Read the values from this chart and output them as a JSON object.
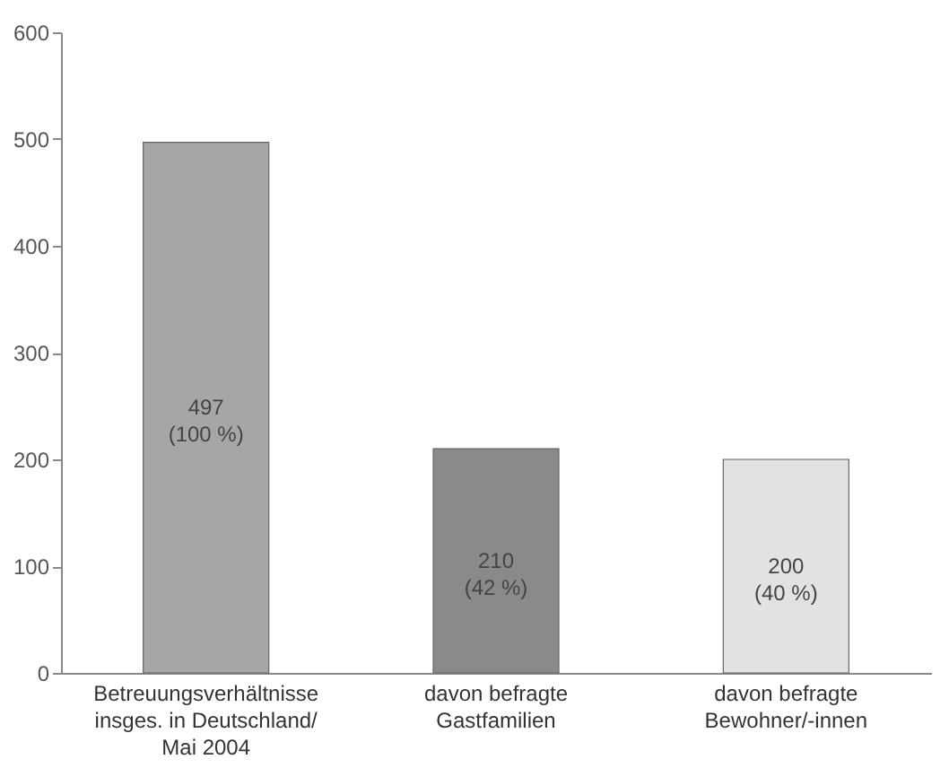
{
  "chart_data": {
    "type": "bar",
    "categories": [
      "Betreuungsverhältnisse\ninsges. in Deutschland/\nMai 2004",
      "davon befragte\nGastfamilien",
      "davon befragte\nBewohner/-innen"
    ],
    "values": [
      497,
      210,
      200
    ],
    "colors": [
      "#a6a6a6",
      "#8a8a8a",
      "#e2e2e2"
    ],
    "value_labels": [
      "497\n(100 %)",
      "210\n(42 %)",
      "200\n(40 %)"
    ],
    "ylim": [
      0,
      600
    ],
    "yticks": [
      0,
      100,
      200,
      300,
      400,
      500,
      600
    ],
    "grid": false
  }
}
